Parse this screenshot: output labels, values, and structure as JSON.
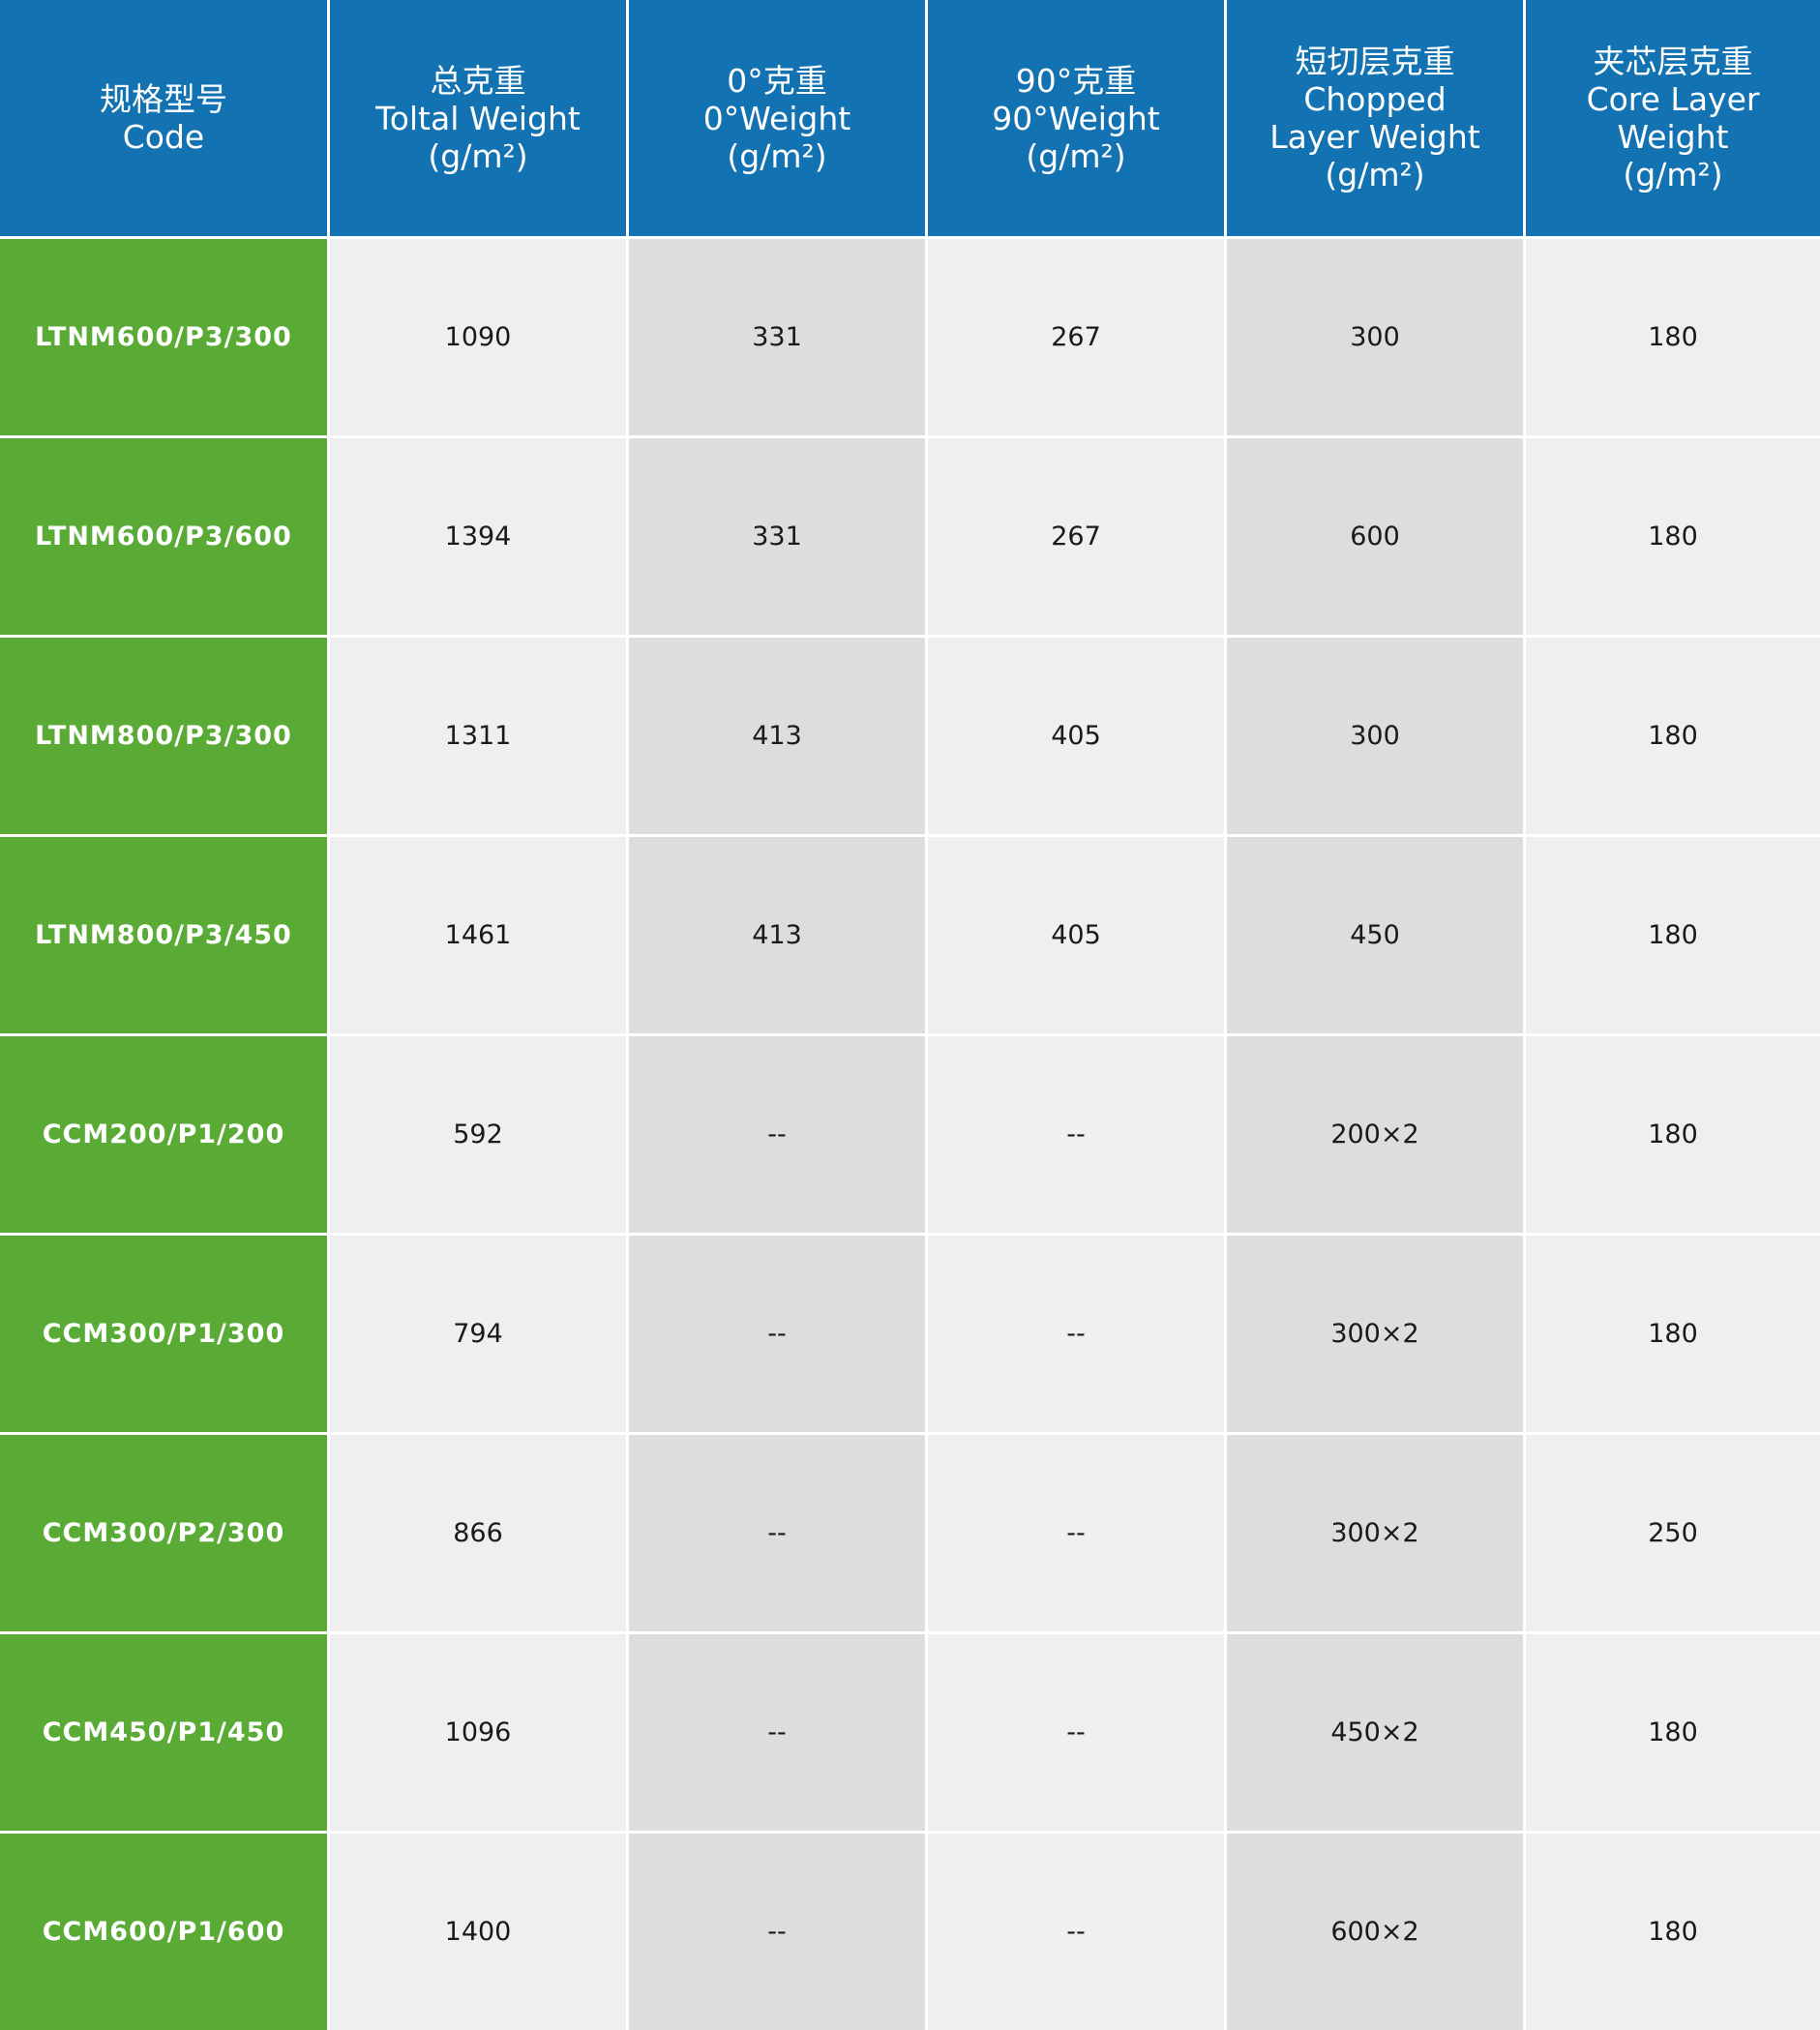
{
  "table": {
    "header": [
      [
        "规格型号",
        "Code"
      ],
      [
        "总克重",
        "Toltal Weight",
        "(g/m²)"
      ],
      [
        "0°克重",
        "0°Weight",
        "(g/m²)"
      ],
      [
        "90°克重",
        "90°Weight",
        "(g/m²)"
      ],
      [
        "短切层克重",
        "Chopped",
        "Layer Weight",
        "(g/m²)"
      ],
      [
        "夹芯层克重",
        "Core Layer Weight",
        "(g/m²)"
      ]
    ],
    "rows": [
      [
        "LTNM600/P3/300",
        "1090",
        "331",
        "267",
        "300",
        "180"
      ],
      [
        "LTNM600/P3/600",
        "1394",
        "331",
        "267",
        "600",
        "180"
      ],
      [
        "LTNM800/P3/300",
        "1311",
        "413",
        "405",
        "300",
        "180"
      ],
      [
        "LTNM800/P3/450",
        "1461",
        "413",
        "405",
        "450",
        "180"
      ],
      [
        "CCM200/P1/200",
        "592",
        "--",
        "--",
        "200×2",
        "180"
      ],
      [
        "CCM300/P1/300",
        "794",
        "--",
        "--",
        "300×2",
        "180"
      ],
      [
        "CCM300/P2/300",
        "866",
        "--",
        "--",
        "300×2",
        "250"
      ],
      [
        "CCM450/P1/450",
        "1096",
        "--",
        "--",
        "450×2",
        "180"
      ],
      [
        "CCM600/P1/600",
        "1400",
        "--",
        "--",
        "600×2",
        "180"
      ]
    ]
  }
}
